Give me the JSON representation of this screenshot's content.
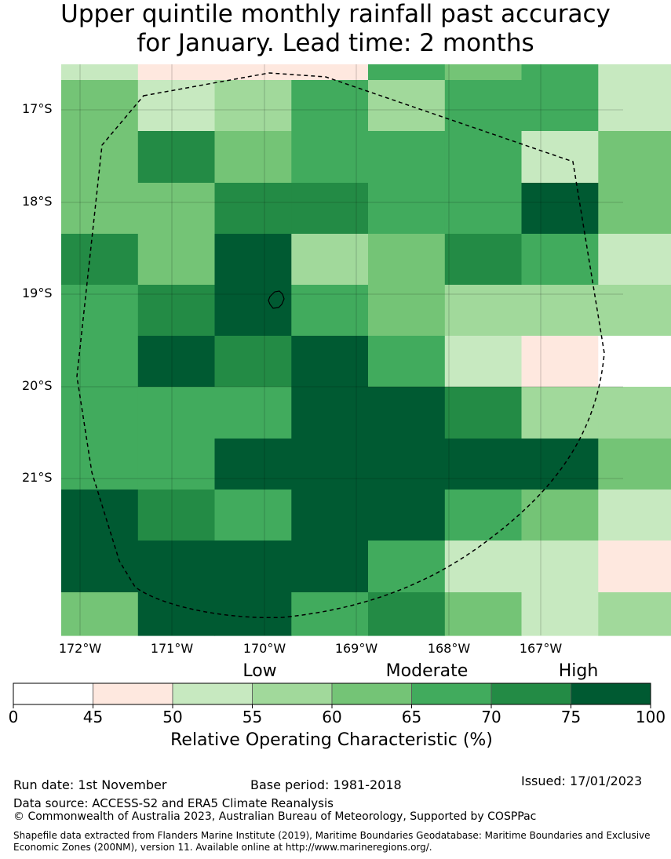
{
  "title": {
    "line1": "Upper quintile monthly rainfall past accuracy",
    "line2": "for January. Lead time: 2 months"
  },
  "map": {
    "lat_labels": [
      "17°S",
      "18°S",
      "19°S",
      "20°S",
      "21°S"
    ],
    "lon_labels": [
      "172°W",
      "171°W",
      "170°W",
      "169°W",
      "168°W",
      "167°W"
    ],
    "grid_values": [
      [
        52,
        48,
        48,
        48,
        67,
        62,
        67,
        52
      ],
      [
        62,
        52,
        57,
        67,
        57,
        67,
        67,
        52
      ],
      [
        62,
        72,
        62,
        67,
        67,
        67,
        52,
        62
      ],
      [
        62,
        62,
        72,
        72,
        67,
        67,
        80,
        62
      ],
      [
        72,
        62,
        80,
        57,
        62,
        72,
        67,
        52
      ],
      [
        67,
        72,
        80,
        67,
        62,
        57,
        57,
        57
      ],
      [
        67,
        80,
        72,
        80,
        67,
        52,
        48,
        40
      ],
      [
        67,
        67,
        67,
        80,
        80,
        72,
        57,
        57
      ],
      [
        67,
        67,
        80,
        80,
        80,
        80,
        80,
        62
      ],
      [
        80,
        72,
        67,
        80,
        80,
        67,
        62,
        52
      ],
      [
        80,
        80,
        80,
        80,
        67,
        52,
        52,
        48
      ],
      [
        62,
        80,
        80,
        67,
        72,
        62,
        52,
        57
      ]
    ]
  },
  "colorbar": {
    "category_labels": [
      "Low",
      "Moderate",
      "High"
    ],
    "bounds": [
      0,
      45,
      50,
      55,
      60,
      65,
      70,
      75,
      100
    ],
    "tick_labels": [
      "0",
      "45",
      "50",
      "55",
      "60",
      "65",
      "70",
      "75",
      "100"
    ],
    "colors": [
      "#ffffff",
      "#fee8df",
      "#c7e9c0",
      "#a1d99b",
      "#74c476",
      "#41ab5d",
      "#238b45",
      "#005a32"
    ],
    "label": "Relative Operating Characteristic (%)"
  },
  "footer": {
    "run_date": "Run date: 1st November",
    "base_period": "Base period: 1981-2018",
    "issued": "Issued: 17/01/2023",
    "data_source": "Data source: ACCESS-S2 and ERA5 Climate Reanalysis",
    "copyright": "© Commonwealth of Australia 2023, Australian Bureau of Meteorology, Supported by COSPPac",
    "shapefile": "Shapefile data extracted from Flanders Marine Institute (2019), Maritime Boundaries Geodatabase: Maritime Boundaries and Exclusive Economic Zones (200NM), version 11. Available online at http://www.marineregions.org/."
  }
}
